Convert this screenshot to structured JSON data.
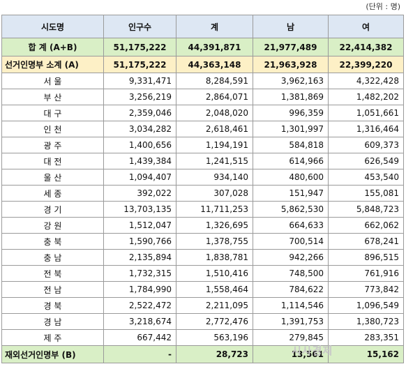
{
  "unit_note": "(단위 : 명)",
  "headers": [
    "시도명",
    "인구수",
    "계",
    "남",
    "여"
  ],
  "total_row": [
    "합 계 (A+B)",
    "51,175,222",
    "44,391,871",
    "21,977,489",
    "22,414,382"
  ],
  "subtotal_row": [
    "선거인명부 소계 (A)",
    "51,175,222",
    "44,363,148",
    "21,963,928",
    "22,399,220"
  ],
  "regions": [
    [
      "서 울",
      "9,331,471",
      "8,284,591",
      "3,962,163",
      "4,322,428"
    ],
    [
      "부 산",
      "3,256,219",
      "2,864,071",
      "1,381,869",
      "1,482,202"
    ],
    [
      "대 구",
      "2,359,046",
      "2,048,020",
      "996,359",
      "1,051,661"
    ],
    [
      "인 천",
      "3,034,282",
      "2,618,461",
      "1,301,997",
      "1,316,464"
    ],
    [
      "광 주",
      "1,400,656",
      "1,194,191",
      "584,818",
      "609,373"
    ],
    [
      "대 전",
      "1,439,384",
      "1,241,515",
      "614,966",
      "626,549"
    ],
    [
      "울 산",
      "1,094,407",
      "934,140",
      "480,600",
      "453,540"
    ],
    [
      "세 종",
      "392,022",
      "307,028",
      "151,947",
      "155,081"
    ],
    [
      "경 기",
      "13,703,135",
      "11,711,253",
      "5,862,530",
      "5,848,723"
    ],
    [
      "강 원",
      "1,512,047",
      "1,326,695",
      "664,633",
      "662,062"
    ],
    [
      "충 북",
      "1,590,766",
      "1,378,755",
      "700,514",
      "678,241"
    ],
    [
      "충 남",
      "2,135,894",
      "1,838,781",
      "942,266",
      "896,515"
    ],
    [
      "전 북",
      "1,732,315",
      "1,510,416",
      "748,500",
      "761,916"
    ],
    [
      "전 남",
      "1,784,990",
      "1,558,464",
      "784,622",
      "773,842"
    ],
    [
      "경 북",
      "2,522,472",
      "2,211,095",
      "1,114,546",
      "1,096,549"
    ],
    [
      "경 남",
      "3,218,674",
      "2,772,476",
      "1,391,753",
      "1,380,723"
    ],
    [
      "제 주",
      "667,442",
      "563,196",
      "279,845",
      "283,351"
    ]
  ],
  "overseas_row": [
    "재외선거인명부 (B)",
    "-",
    "28,723",
    "13,561",
    "15,162"
  ],
  "watermark": "시사경제"
}
